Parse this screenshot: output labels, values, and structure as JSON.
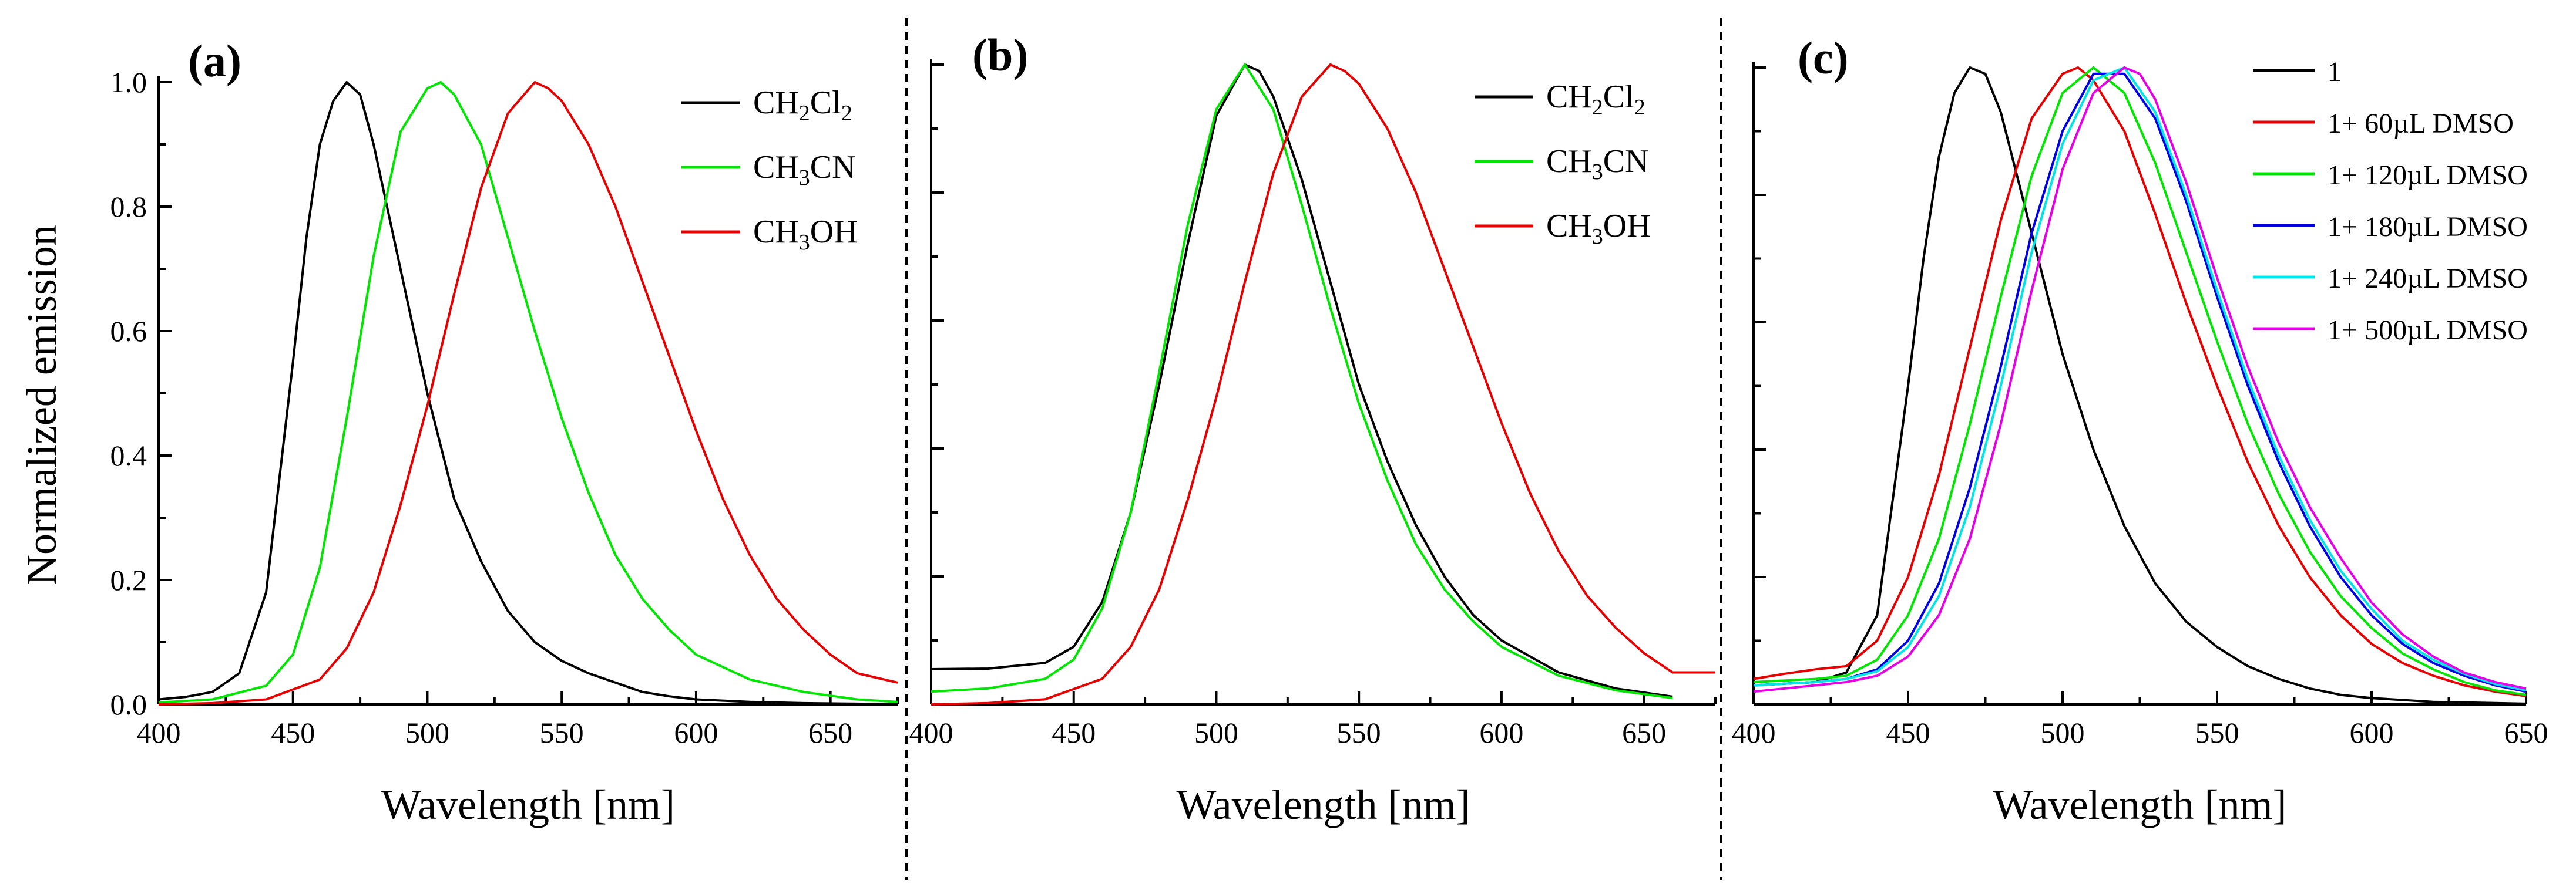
{
  "figure": {
    "ylabel": "Normalized emission",
    "panels": [
      "(a)",
      "(b)",
      "(c)"
    ]
  },
  "chart_data": [
    {
      "type": "line",
      "panel": "(a)",
      "xlabel": "Wavelength [nm]",
      "ylabel": "Normalized emission",
      "xlim": [
        400,
        675
      ],
      "ylim": [
        0,
        1.0
      ],
      "xticks": [
        400,
        450,
        500,
        550,
        600,
        650
      ],
      "yticks": [
        0.0,
        0.2,
        0.4,
        0.6,
        0.8,
        1.0
      ],
      "yticklabels": [
        "0.0",
        "0.2",
        "0.4",
        "0.6",
        "0.8",
        "1.0"
      ],
      "legend_position": "top-right",
      "series": [
        {
          "name": "CH2Cl2",
          "label_parts": [
            [
              "CH",
              ""
            ],
            [
              "2",
              "sub"
            ],
            [
              "Cl",
              ""
            ],
            [
              "2",
              "sub"
            ]
          ],
          "color": "#000000",
          "x": [
            400,
            410,
            420,
            430,
            440,
            450,
            455,
            460,
            465,
            470,
            475,
            480,
            490,
            500,
            510,
            520,
            530,
            540,
            550,
            560,
            570,
            580,
            590,
            600,
            620,
            640,
            660,
            675
          ],
          "y": [
            0.008,
            0.012,
            0.02,
            0.05,
            0.18,
            0.55,
            0.75,
            0.9,
            0.97,
            1.0,
            0.98,
            0.9,
            0.7,
            0.5,
            0.33,
            0.23,
            0.15,
            0.1,
            0.07,
            0.05,
            0.035,
            0.02,
            0.013,
            0.008,
            0.004,
            0.002,
            0.001,
            0.0
          ]
        },
        {
          "name": "CH3CN",
          "label_parts": [
            [
              "CH",
              ""
            ],
            [
              "3",
              "sub"
            ],
            [
              "CN",
              ""
            ]
          ],
          "color": "#00e600",
          "x": [
            400,
            420,
            440,
            450,
            460,
            470,
            480,
            490,
            500,
            505,
            510,
            520,
            530,
            540,
            550,
            560,
            570,
            580,
            590,
            600,
            620,
            640,
            660,
            675
          ],
          "y": [
            0.003,
            0.008,
            0.03,
            0.08,
            0.22,
            0.46,
            0.72,
            0.92,
            0.99,
            1.0,
            0.98,
            0.9,
            0.75,
            0.6,
            0.46,
            0.34,
            0.24,
            0.17,
            0.12,
            0.08,
            0.04,
            0.02,
            0.008,
            0.004
          ]
        },
        {
          "name": "CH3OH",
          "label_parts": [
            [
              "CH",
              ""
            ],
            [
              "3",
              "sub"
            ],
            [
              "OH",
              ""
            ]
          ],
          "color": "#e60000",
          "x": [
            400,
            420,
            440,
            460,
            470,
            480,
            490,
            500,
            510,
            520,
            530,
            540,
            545,
            550,
            560,
            570,
            580,
            590,
            600,
            610,
            620,
            630,
            640,
            650,
            660,
            670,
            675
          ],
          "y": [
            0.0,
            0.002,
            0.008,
            0.04,
            0.09,
            0.18,
            0.32,
            0.48,
            0.66,
            0.83,
            0.95,
            1.0,
            0.99,
            0.97,
            0.9,
            0.8,
            0.68,
            0.56,
            0.44,
            0.33,
            0.24,
            0.17,
            0.12,
            0.08,
            0.05,
            0.04,
            0.035
          ]
        }
      ]
    },
    {
      "type": "line",
      "panel": "(b)",
      "xlabel": "Wavelength [nm]",
      "xlim": [
        400,
        675
      ],
      "ylim": [
        0,
        1.0
      ],
      "xticks": [
        400,
        450,
        500,
        550,
        600,
        650
      ],
      "yticks": [
        0.0,
        0.2,
        0.4,
        0.6,
        0.8,
        1.0
      ],
      "legend_position": "top-right",
      "series": [
        {
          "name": "CH2Cl2",
          "label_parts": [
            [
              "CH",
              ""
            ],
            [
              "2",
              "sub"
            ],
            [
              "Cl",
              ""
            ],
            [
              "2",
              "sub"
            ]
          ],
          "color": "#000000",
          "x": [
            400,
            420,
            440,
            450,
            460,
            470,
            480,
            490,
            500,
            510,
            515,
            520,
            530,
            540,
            550,
            560,
            570,
            580,
            590,
            600,
            620,
            640,
            660
          ],
          "y": [
            0.055,
            0.056,
            0.065,
            0.09,
            0.16,
            0.3,
            0.5,
            0.72,
            0.92,
            1.0,
            0.99,
            0.95,
            0.82,
            0.66,
            0.5,
            0.38,
            0.28,
            0.2,
            0.14,
            0.1,
            0.05,
            0.025,
            0.012
          ]
        },
        {
          "name": "CH3CN",
          "label_parts": [
            [
              "CH",
              ""
            ],
            [
              "3",
              "sub"
            ],
            [
              "CN",
              ""
            ]
          ],
          "color": "#00e600",
          "x": [
            400,
            420,
            440,
            450,
            460,
            470,
            480,
            490,
            500,
            510,
            520,
            530,
            540,
            550,
            560,
            570,
            580,
            590,
            600,
            620,
            640,
            660
          ],
          "y": [
            0.02,
            0.025,
            0.04,
            0.07,
            0.15,
            0.3,
            0.52,
            0.75,
            0.93,
            1.0,
            0.93,
            0.78,
            0.62,
            0.47,
            0.35,
            0.25,
            0.18,
            0.13,
            0.09,
            0.045,
            0.022,
            0.01
          ]
        },
        {
          "name": "CH3OH",
          "label_parts": [
            [
              "CH",
              ""
            ],
            [
              "3",
              "sub"
            ],
            [
              "OH",
              ""
            ]
          ],
          "color": "#e60000",
          "x": [
            400,
            420,
            440,
            460,
            470,
            480,
            490,
            500,
            510,
            520,
            530,
            540,
            545,
            550,
            560,
            570,
            580,
            590,
            600,
            610,
            620,
            630,
            640,
            650,
            660,
            670,
            675
          ],
          "y": [
            0.0,
            0.002,
            0.008,
            0.04,
            0.09,
            0.18,
            0.32,
            0.48,
            0.66,
            0.83,
            0.95,
            1.0,
            0.99,
            0.97,
            0.9,
            0.8,
            0.68,
            0.56,
            0.44,
            0.33,
            0.24,
            0.17,
            0.12,
            0.08,
            0.05,
            0.05,
            0.05
          ]
        }
      ]
    },
    {
      "type": "line",
      "panel": "(c)",
      "xlabel": "Wavelength [nm]",
      "xlim": [
        400,
        650
      ],
      "ylim": [
        0,
        1.0
      ],
      "xticks": [
        400,
        450,
        500,
        550,
        600,
        650
      ],
      "yticks": [
        0.0,
        0.2,
        0.4,
        0.6,
        0.8,
        1.0
      ],
      "legend_position": "top-right",
      "series": [
        {
          "name": "1",
          "label_parts": [
            [
              "1",
              ""
            ]
          ],
          "color": "#000000",
          "x": [
            400,
            420,
            430,
            440,
            450,
            455,
            460,
            465,
            470,
            475,
            480,
            490,
            500,
            510,
            520,
            530,
            540,
            550,
            560,
            570,
            580,
            590,
            600,
            620,
            640,
            650
          ],
          "y": [
            0.03,
            0.035,
            0.05,
            0.14,
            0.5,
            0.7,
            0.86,
            0.96,
            1.0,
            0.99,
            0.93,
            0.74,
            0.55,
            0.4,
            0.28,
            0.19,
            0.13,
            0.09,
            0.06,
            0.04,
            0.025,
            0.015,
            0.01,
            0.004,
            0.002,
            0.001
          ]
        },
        {
          "name": "1+ 60µL DMSO",
          "label_parts": [
            [
              "1+ 60µL DMSO",
              ""
            ]
          ],
          "color": "#e60000",
          "x": [
            400,
            410,
            420,
            430,
            440,
            450,
            460,
            470,
            480,
            490,
            500,
            505,
            510,
            520,
            530,
            540,
            550,
            560,
            570,
            580,
            590,
            600,
            610,
            620,
            630,
            640,
            650
          ],
          "y": [
            0.04,
            0.048,
            0.055,
            0.06,
            0.1,
            0.2,
            0.36,
            0.56,
            0.76,
            0.92,
            0.99,
            1.0,
            0.98,
            0.9,
            0.77,
            0.63,
            0.5,
            0.38,
            0.28,
            0.2,
            0.14,
            0.095,
            0.065,
            0.045,
            0.03,
            0.02,
            0.013
          ]
        },
        {
          "name": "1+ 120µL DMSO",
          "label_parts": [
            [
              "1+ 120µL DMSO",
              ""
            ]
          ],
          "color": "#00e600",
          "x": [
            400,
            420,
            430,
            440,
            450,
            460,
            470,
            480,
            490,
            500,
            510,
            520,
            530,
            540,
            550,
            560,
            570,
            580,
            590,
            600,
            610,
            620,
            630,
            640,
            650
          ],
          "y": [
            0.035,
            0.04,
            0.045,
            0.07,
            0.14,
            0.26,
            0.44,
            0.64,
            0.83,
            0.96,
            1.0,
            0.96,
            0.85,
            0.71,
            0.57,
            0.44,
            0.33,
            0.24,
            0.17,
            0.12,
            0.08,
            0.055,
            0.035,
            0.022,
            0.015
          ]
        },
        {
          "name": "1+ 180µL DMSO",
          "label_parts": [
            [
              "1+ 180µL DMSO",
              ""
            ]
          ],
          "color": "#0000e6",
          "x": [
            400,
            420,
            430,
            440,
            450,
            460,
            470,
            480,
            490,
            500,
            510,
            520,
            530,
            540,
            550,
            560,
            570,
            580,
            590,
            600,
            610,
            620,
            630,
            640,
            650
          ],
          "y": [
            0.03,
            0.035,
            0.04,
            0.055,
            0.1,
            0.19,
            0.34,
            0.53,
            0.74,
            0.9,
            0.99,
            0.99,
            0.92,
            0.79,
            0.64,
            0.5,
            0.38,
            0.28,
            0.2,
            0.14,
            0.095,
            0.065,
            0.045,
            0.03,
            0.02
          ]
        },
        {
          "name": "1+ 240µL DMSO",
          "label_parts": [
            [
              "1+ 240µL DMSO",
              ""
            ]
          ],
          "color": "#00e6e6",
          "x": [
            400,
            420,
            430,
            440,
            450,
            460,
            470,
            480,
            490,
            500,
            510,
            520,
            530,
            540,
            550,
            560,
            570,
            580,
            590,
            600,
            610,
            620,
            630,
            640,
            650
          ],
          "y": [
            0.03,
            0.035,
            0.04,
            0.052,
            0.09,
            0.17,
            0.31,
            0.5,
            0.71,
            0.88,
            0.98,
            1.0,
            0.93,
            0.8,
            0.65,
            0.51,
            0.39,
            0.29,
            0.21,
            0.15,
            0.1,
            0.07,
            0.048,
            0.032,
            0.022
          ]
        },
        {
          "name": "1+ 500µL DMSO",
          "label_parts": [
            [
              "1+ 500µL DMSO",
              ""
            ]
          ],
          "color": "#e600e6",
          "x": [
            400,
            420,
            430,
            440,
            450,
            460,
            470,
            480,
            490,
            500,
            510,
            520,
            525,
            530,
            540,
            550,
            560,
            570,
            580,
            590,
            600,
            610,
            620,
            630,
            640,
            650
          ],
          "y": [
            0.02,
            0.03,
            0.035,
            0.045,
            0.075,
            0.14,
            0.26,
            0.44,
            0.65,
            0.84,
            0.96,
            1.0,
            0.99,
            0.95,
            0.82,
            0.67,
            0.53,
            0.41,
            0.31,
            0.23,
            0.16,
            0.11,
            0.075,
            0.05,
            0.035,
            0.025
          ]
        }
      ]
    }
  ]
}
